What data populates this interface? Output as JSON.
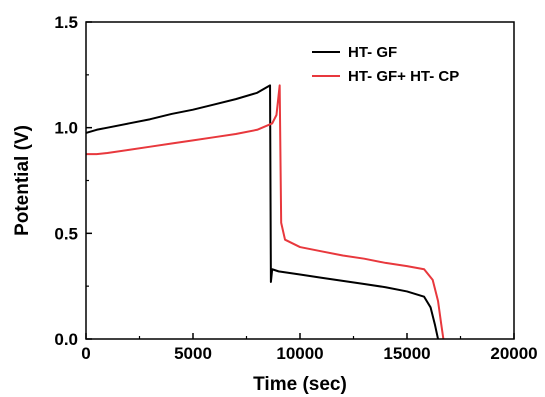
{
  "chart_data": {
    "type": "line",
    "xlabel": "Time (sec)",
    "ylabel": "Potential (V)",
    "xlim": [
      0,
      20000
    ],
    "ylim": [
      0,
      1.5
    ],
    "x_ticks": [
      "0",
      "5000",
      "10000",
      "15000",
      "20000"
    ],
    "y_ticks": [
      "0.0",
      "0.5",
      "1.0",
      "1.5"
    ],
    "grid": false,
    "legend": {
      "placement": "top-right"
    },
    "series": [
      {
        "name": "HT- GF",
        "color": "#000000",
        "points": [
          [
            0,
            0.975
          ],
          [
            500,
            0.99
          ],
          [
            1000,
            1.0
          ],
          [
            2000,
            1.02
          ],
          [
            3000,
            1.04
          ],
          [
            4000,
            1.065
          ],
          [
            5000,
            1.085
          ],
          [
            6000,
            1.11
          ],
          [
            7000,
            1.135
          ],
          [
            8000,
            1.165
          ],
          [
            8600,
            1.2
          ],
          [
            8640,
            0.27
          ],
          [
            8700,
            0.33
          ],
          [
            9000,
            0.32
          ],
          [
            10000,
            0.305
          ],
          [
            11000,
            0.29
          ],
          [
            12000,
            0.275
          ],
          [
            13000,
            0.26
          ],
          [
            14000,
            0.245
          ],
          [
            15000,
            0.225
          ],
          [
            15800,
            0.2
          ],
          [
            16100,
            0.15
          ],
          [
            16300,
            0.07
          ],
          [
            16450,
            0.0
          ]
        ]
      },
      {
        "name": "HT- GF+ HT- CP",
        "color": "#e8383d",
        "points": [
          [
            0,
            0.875
          ],
          [
            500,
            0.875
          ],
          [
            1000,
            0.88
          ],
          [
            2000,
            0.895
          ],
          [
            3000,
            0.91
          ],
          [
            4000,
            0.925
          ],
          [
            5000,
            0.94
          ],
          [
            6000,
            0.955
          ],
          [
            7000,
            0.97
          ],
          [
            8000,
            0.99
          ],
          [
            8700,
            1.02
          ],
          [
            8900,
            1.06
          ],
          [
            9050,
            1.2
          ],
          [
            9120,
            0.55
          ],
          [
            9300,
            0.47
          ],
          [
            10000,
            0.435
          ],
          [
            11000,
            0.415
          ],
          [
            12000,
            0.395
          ],
          [
            13000,
            0.38
          ],
          [
            14000,
            0.36
          ],
          [
            15000,
            0.345
          ],
          [
            15800,
            0.33
          ],
          [
            16200,
            0.28
          ],
          [
            16450,
            0.18
          ],
          [
            16600,
            0.07
          ],
          [
            16700,
            0.0
          ]
        ]
      }
    ]
  }
}
